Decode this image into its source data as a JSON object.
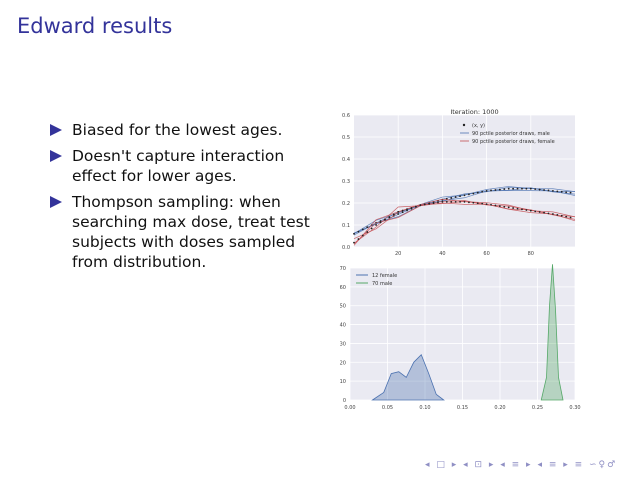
{
  "slide": {
    "title": "Edward results",
    "bullets": [
      "Biased for the lowest ages.",
      "Doesn't capture interaction effect for lower ages.",
      "Thompson sampling: when searching max dose, treat test subjects with doses sampled from distribution."
    ],
    "nav_symbols": "◂ □ ▸ ◂ ⊡ ▸ ◂ ≡ ▸ ◂ ≡ ▸ ≡ ∽♀♂"
  },
  "colors": {
    "title": "#33339a",
    "male": "#4c72b0",
    "female": "#c44e52",
    "dist_female": "#4c72b0",
    "dist_male": "#55a868",
    "plot_bg": "#eaeaf2"
  },
  "chart_data": [
    {
      "type": "line",
      "title": "Iteration: 1000",
      "xlim": [
        0,
        100
      ],
      "ylim": [
        0.0,
        0.6
      ],
      "x_ticks": [
        "20",
        "40",
        "60",
        "80"
      ],
      "y_ticks": [
        "0.0",
        "0.1",
        "0.2",
        "0.3",
        "0.4",
        "0.5",
        "0.6"
      ],
      "legend_placement": "top-right",
      "legend": [
        "(x, y)",
        "90 pctile posterior draws, male",
        "90 pctile posterior draws, female"
      ],
      "series": [
        {
          "name": "90 pctile posterior draws, male",
          "x": [
            0,
            10,
            20,
            30,
            40,
            50,
            60,
            70,
            80,
            90,
            100
          ],
          "values": [
            0.06,
            0.11,
            0.15,
            0.19,
            0.215,
            0.235,
            0.255,
            0.265,
            0.265,
            0.255,
            0.245
          ]
        },
        {
          "name": "90 pctile posterior draws, female",
          "x": [
            0,
            10,
            20,
            30,
            40,
            50,
            60,
            70,
            80,
            90,
            100
          ],
          "values": [
            0.02,
            0.1,
            0.16,
            0.19,
            0.205,
            0.205,
            0.195,
            0.18,
            0.165,
            0.15,
            0.13
          ]
        }
      ]
    },
    {
      "type": "area",
      "xlim": [
        0.0,
        0.3
      ],
      "ylim": [
        0,
        70
      ],
      "x_ticks": [
        "0.00",
        "0.05",
        "0.10",
        "0.15",
        "0.20",
        "0.25",
        "0.30"
      ],
      "y_ticks": [
        "0",
        "10",
        "20",
        "30",
        "40",
        "50",
        "60",
        "70"
      ],
      "legend_placement": "top-left",
      "legend": [
        "12 female",
        "70 male"
      ],
      "series": [
        {
          "name": "12 female",
          "x": [
            0.03,
            0.045,
            0.055,
            0.065,
            0.075,
            0.085,
            0.095,
            0.105,
            0.115,
            0.125
          ],
          "values": [
            0,
            4,
            14,
            15,
            12,
            20,
            24,
            14,
            3,
            0
          ]
        },
        {
          "name": "70 male",
          "x": [
            0.255,
            0.262,
            0.266,
            0.27,
            0.274,
            0.278,
            0.284
          ],
          "values": [
            0,
            12,
            50,
            72,
            48,
            12,
            0
          ]
        }
      ]
    }
  ]
}
